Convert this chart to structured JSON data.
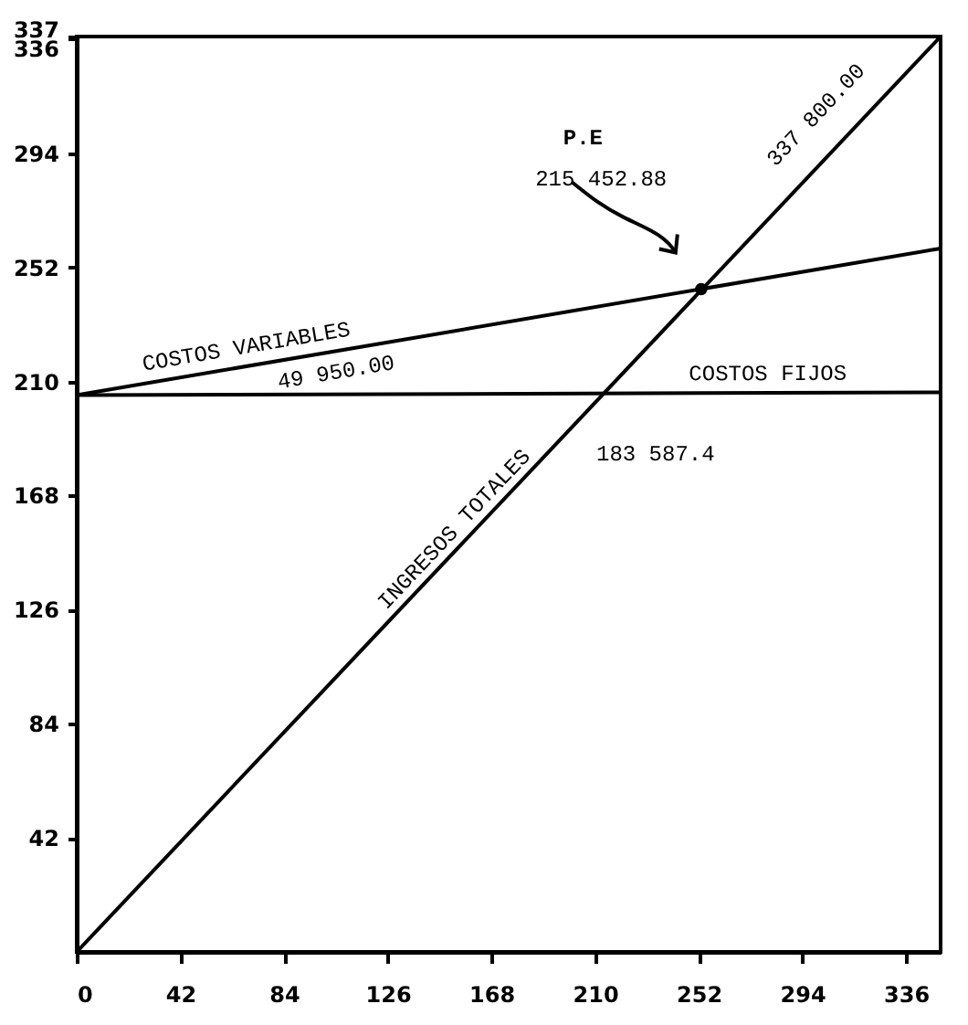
{
  "chart_data": {
    "type": "line",
    "xlim": [
      0,
      350
    ],
    "ylim": [
      0,
      337
    ],
    "xticks": [
      0,
      42,
      84,
      126,
      168,
      210,
      252,
      294,
      336
    ],
    "yticks": [
      42,
      84,
      126,
      168,
      210,
      252,
      294,
      336,
      337
    ],
    "grid": false,
    "marker": "none",
    "line_style": "solid",
    "series": [
      {
        "name": "COSTOS VARIABLES",
        "color": "#000000",
        "x": [
          0,
          350
        ],
        "values": [
          205,
          259
        ]
      },
      {
        "name": "COSTOS FIJOS",
        "color": "#000000",
        "x": [
          0,
          350
        ],
        "values": [
          205,
          206
        ]
      },
      {
        "name": "INGRESOS TOTALES",
        "color": "#000000",
        "x": [
          0,
          350
        ],
        "values": [
          0,
          337
        ]
      },
      {
        "type": "scatter",
        "marker": "circle",
        "color": "#000000",
        "x": [
          253
        ],
        "values": [
          244
        ]
      }
    ],
    "annotations": [
      "P.E",
      "215 452.88",
      "49 950.00",
      "183 587.4",
      "337 800.00"
    ]
  }
}
